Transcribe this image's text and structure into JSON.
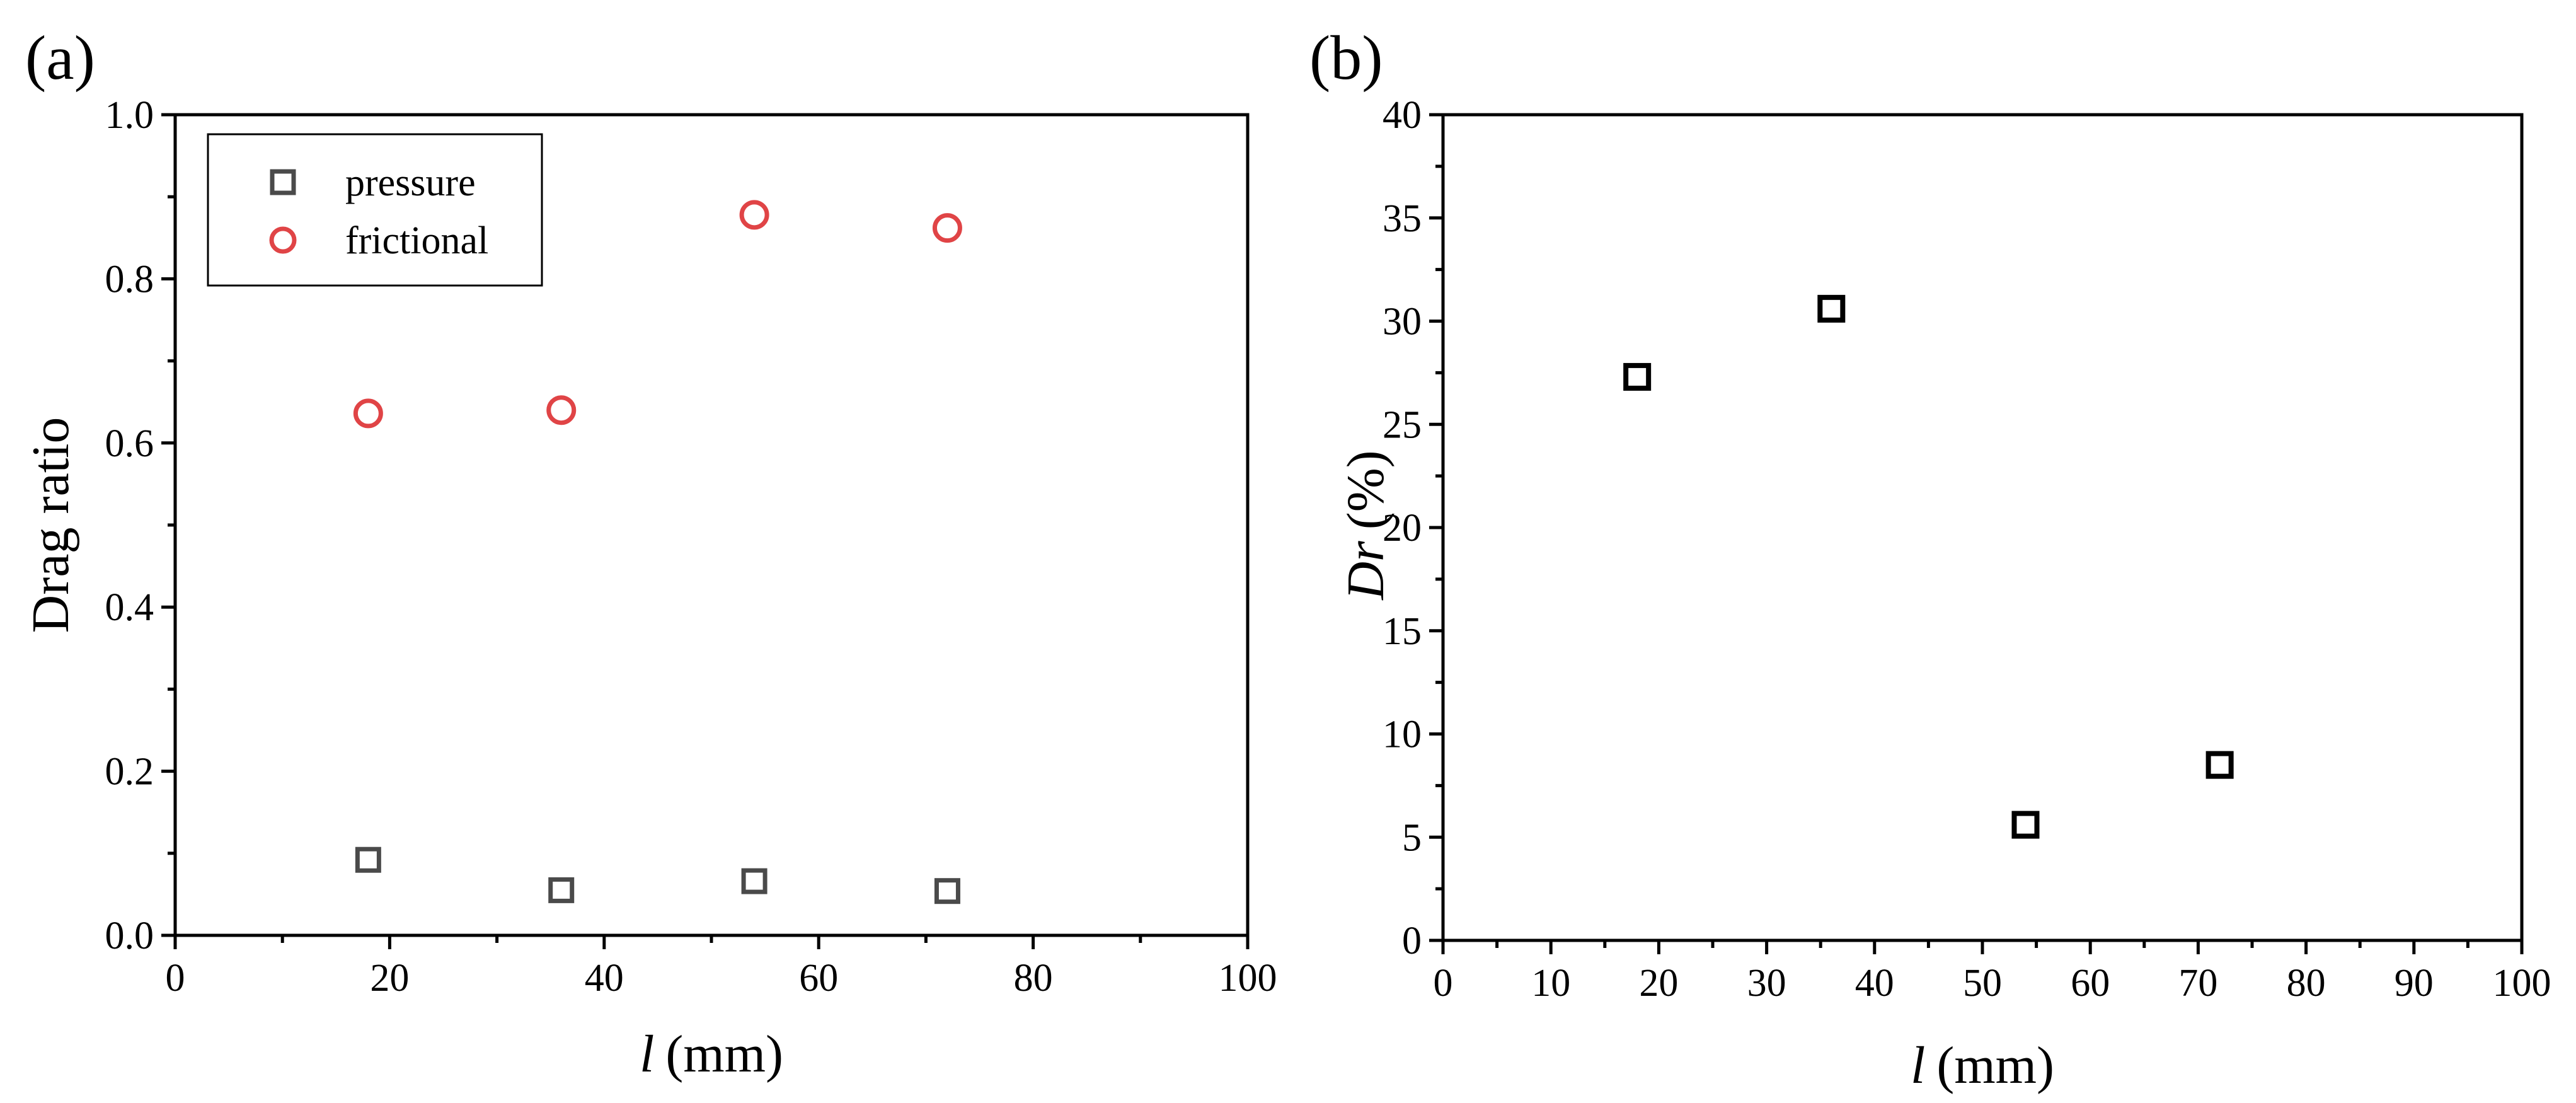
{
  "chart_data": [
    {
      "panel": "(a)",
      "type": "scatter",
      "xlabel": "l",
      "xlabel_unit": "(mm)",
      "ylabel": "Drag ratio",
      "xlim": [
        0,
        100
      ],
      "ylim": [
        0,
        1.0
      ],
      "xticks": [
        "0",
        "20",
        "40",
        "60",
        "80",
        "100"
      ],
      "yticks": [
        "0.0",
        "0.2",
        "0.4",
        "0.6",
        "0.8",
        "1.0"
      ],
      "legend_position": "top-left",
      "grid": false,
      "series": [
        {
          "name": "pressure",
          "marker": "square",
          "color": "#4a4a4a",
          "x": [
            18,
            36,
            54,
            72
          ],
          "y": [
            0.092,
            0.055,
            0.066,
            0.054
          ]
        },
        {
          "name": "frictional",
          "marker": "circle",
          "color": "#e04446",
          "x": [
            18,
            36,
            54,
            72
          ],
          "y": [
            0.636,
            0.64,
            0.878,
            0.862
          ]
        }
      ]
    },
    {
      "panel": "(b)",
      "type": "scatter",
      "xlabel": "l",
      "xlabel_unit": "(mm)",
      "ylabel": "Dr",
      "ylabel_unit": "(%)",
      "xlim": [
        0,
        100
      ],
      "ylim": [
        0,
        40
      ],
      "xticks": [
        "0",
        "10",
        "20",
        "30",
        "40",
        "50",
        "60",
        "70",
        "80",
        "90",
        "100"
      ],
      "yticks": [
        "0",
        "5",
        "10",
        "15",
        "20",
        "25",
        "30",
        "35",
        "40"
      ],
      "grid": false,
      "series": [
        {
          "marker": "square",
          "color": "#000000",
          "x": [
            18,
            36,
            54,
            72
          ],
          "y": [
            27.3,
            30.6,
            5.6,
            8.5
          ]
        }
      ]
    }
  ]
}
